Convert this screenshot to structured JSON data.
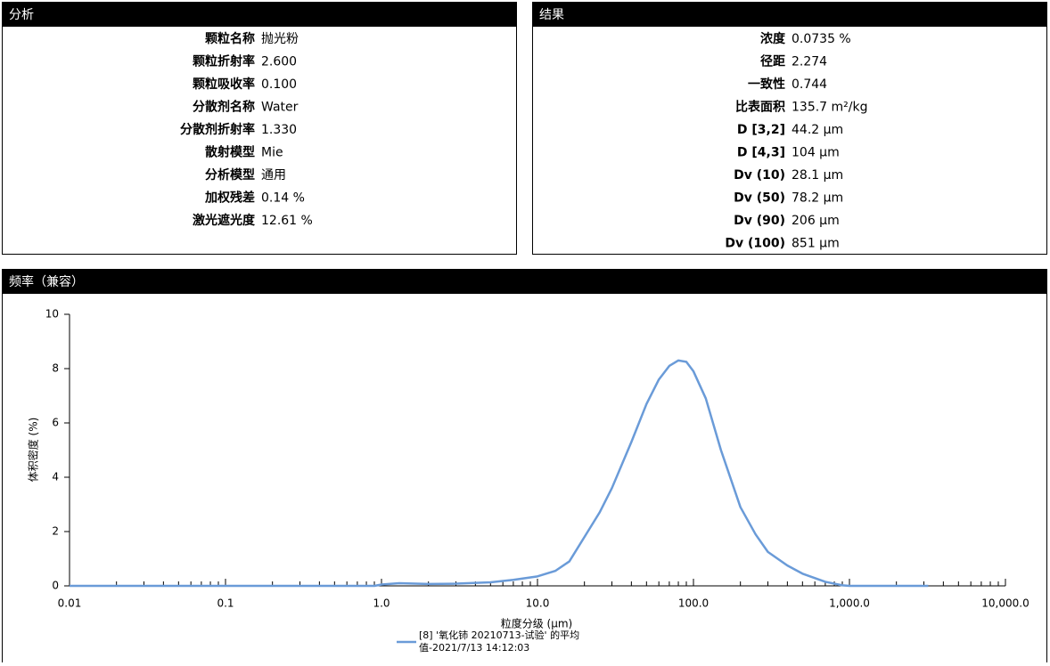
{
  "analysis": {
    "title": "分析",
    "rows": [
      {
        "label": "颗粒名称",
        "value": "抛光粉"
      },
      {
        "label": "颗粒折射率",
        "value": "2.600"
      },
      {
        "label": "颗粒吸收率",
        "value": "0.100"
      },
      {
        "label": "分散剂名称",
        "value": "Water"
      },
      {
        "label": "分散剂折射率",
        "value": "1.330"
      },
      {
        "label": "散射模型",
        "value": "Mie"
      },
      {
        "label": "分析模型",
        "value": "通用"
      },
      {
        "label": "加权残差",
        "value": "0.14 %"
      },
      {
        "label": "激光遮光度",
        "value": "12.61 %"
      }
    ]
  },
  "results": {
    "title": "结果",
    "rows": [
      {
        "label": "浓度",
        "value": "0.0735 %"
      },
      {
        "label": "径距",
        "value": "2.274"
      },
      {
        "label": "一致性",
        "value": "0.744"
      },
      {
        "label": "比表面积",
        "value": "135.7 m²/kg"
      },
      {
        "label": "D [3,2]",
        "value": "44.2 μm"
      },
      {
        "label": "D [4,3]",
        "value": "104 μm"
      },
      {
        "label": "Dv (10)",
        "value": "28.1 μm"
      },
      {
        "label": "Dv (50)",
        "value": "78.2 μm"
      },
      {
        "label": "Dv (90)",
        "value": "206 μm"
      },
      {
        "label": "Dv (100)",
        "value": "851 μm"
      }
    ]
  },
  "chart_panel_title": "频率（兼容）",
  "chart_data": {
    "type": "line",
    "xlabel": "粒度分级 (μm)",
    "ylabel": "体积密度 (%)",
    "xscale": "log",
    "xlim": [
      0.01,
      10000
    ],
    "xticks": [
      0.01,
      0.1,
      {
        "value": 1,
        "label": "1.0"
      },
      {
        "value": 10,
        "label": "10.0"
      },
      {
        "value": 100,
        "label": "100.0"
      },
      {
        "value": 1000,
        "label": "1,000.0"
      },
      {
        "value": 10000,
        "label": "10,000.0"
      }
    ],
    "ylim": [
      0,
      10
    ],
    "yticks": [
      0,
      2,
      4,
      6,
      8,
      10
    ],
    "x": [
      0.01,
      0.1,
      0.9,
      1.0,
      1.3,
      2,
      3,
      5,
      7,
      10,
      13,
      16,
      20,
      25,
      30,
      40,
      50,
      60,
      70,
      80,
      90,
      100,
      120,
      150,
      200,
      250,
      300,
      400,
      500,
      700,
      900,
      1000,
      3200
    ],
    "series": [
      {
        "name": "[8] '氧化铈 20210713-试验' 的平均值-2021/7/13 14:12:03",
        "color": "#6a9bd8",
        "values": [
          0,
          0,
          0,
          0.05,
          0.1,
          0.07,
          0.08,
          0.13,
          0.22,
          0.35,
          0.55,
          0.9,
          1.8,
          2.7,
          3.6,
          5.3,
          6.7,
          7.6,
          8.1,
          8.3,
          8.25,
          7.9,
          6.9,
          5.0,
          2.9,
          1.9,
          1.25,
          0.75,
          0.45,
          0.15,
          0.02,
          0,
          0
        ]
      }
    ]
  }
}
